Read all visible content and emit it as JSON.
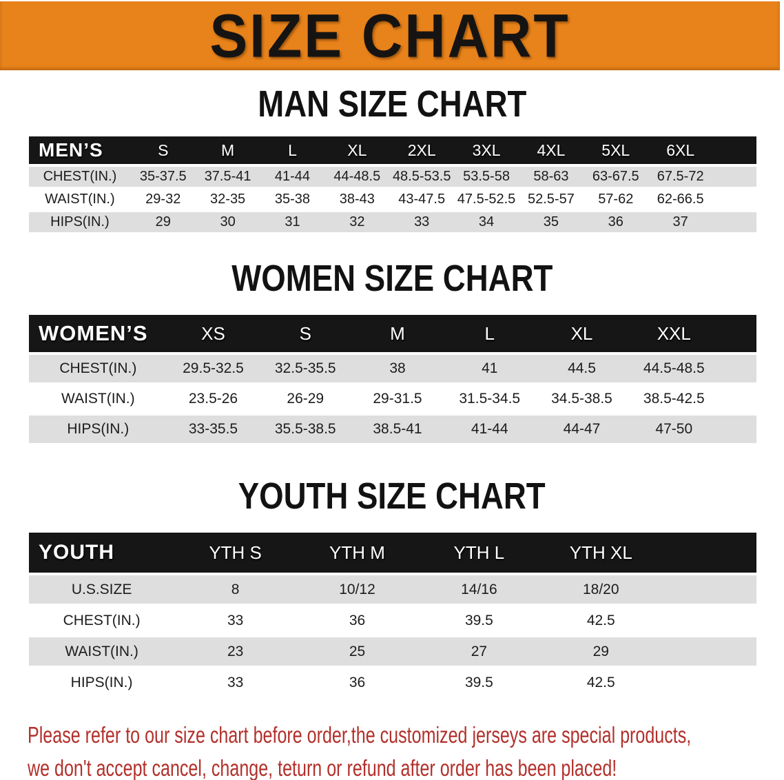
{
  "banner": {
    "title": "SIZE CHART"
  },
  "colors": {
    "banner_bg": "#e8821a",
    "bar_bg": "#161616",
    "row_alt_bg": "#dedede",
    "disclaimer_color": "#b2302b"
  },
  "sections": [
    {
      "heading": "MAN SIZE CHART",
      "group_label": "MEN’S",
      "columns": [
        "S",
        "M",
        "L",
        "XL",
        "2XL",
        "3XL",
        "4XL",
        "5XL",
        "6XL"
      ],
      "rows": [
        {
          "label": "CHEST(IN.)",
          "values": [
            "35-37.5",
            "37.5-41",
            "41-44",
            "44-48.5",
            "48.5-53.5",
            "53.5-58",
            "58-63",
            "63-67.5",
            "67.5-72"
          ]
        },
        {
          "label": "WAIST(IN.)",
          "values": [
            "29-32",
            "32-35",
            "35-38",
            "38-43",
            "43-47.5",
            "47.5-52.5",
            "52.5-57",
            "57-62",
            "62-66.5"
          ]
        },
        {
          "label": "HIPS(IN.)",
          "values": [
            "29",
            "30",
            "31",
            "32",
            "33",
            "34",
            "35",
            "36",
            "37"
          ]
        }
      ]
    },
    {
      "heading": "WOMEN SIZE CHART",
      "group_label": "WOMEN’S",
      "columns": [
        "XS",
        "S",
        "M",
        "L",
        "XL",
        "XXL"
      ],
      "rows": [
        {
          "label": "CHEST(IN.)",
          "values": [
            "29.5-32.5",
            "32.5-35.5",
            "38",
            "41",
            "44.5",
            "44.5-48.5"
          ]
        },
        {
          "label": "WAIST(IN.)",
          "values": [
            "23.5-26",
            "26-29",
            "29-31.5",
            "31.5-34.5",
            "34.5-38.5",
            "38.5-42.5"
          ]
        },
        {
          "label": "HIPS(IN.)",
          "values": [
            "33-35.5",
            "35.5-38.5",
            "38.5-41",
            "41-44",
            "44-47",
            "47-50"
          ]
        }
      ]
    },
    {
      "heading": "YOUTH SIZE CHART",
      "group_label": "YOUTH",
      "columns": [
        "YTH S",
        "YTH M",
        "YTH L",
        "YTH XL"
      ],
      "rows": [
        {
          "label": "U.S.SIZE",
          "values": [
            "8",
            "10/12",
            "14/16",
            "18/20"
          ]
        },
        {
          "label": "CHEST(IN.)",
          "values": [
            "33",
            "36",
            "39.5",
            "42.5"
          ]
        },
        {
          "label": "WAIST(IN.)",
          "values": [
            "23",
            "25",
            "27",
            "29"
          ]
        },
        {
          "label": "HIPS(IN.)",
          "values": [
            "33",
            "36",
            "39.5",
            "42.5"
          ]
        }
      ]
    }
  ],
  "disclaimer": {
    "line1": "Please refer to our size chart before order,the customized jerseys are special products,",
    "line2": "we don't accept cancel, change, teturn or refund after order has been placed!"
  }
}
